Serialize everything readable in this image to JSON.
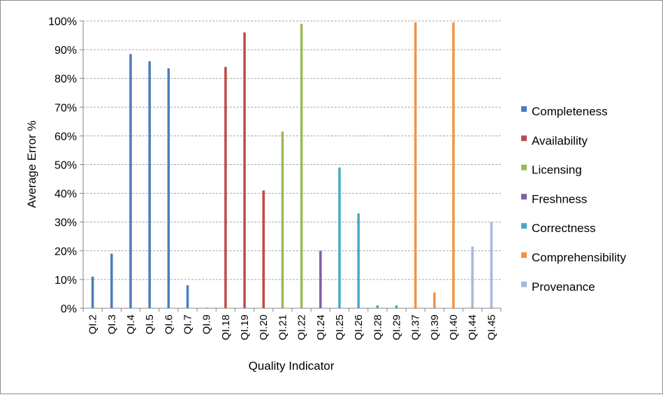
{
  "chart_data": {
    "type": "bar",
    "title": "",
    "xlabel": "Quality Indicator",
    "ylabel": "Average Error %",
    "ylim": [
      0,
      100
    ],
    "yticks": [
      "0%",
      "10%",
      "20%",
      "30%",
      "40%",
      "50%",
      "60%",
      "70%",
      "80%",
      "90%",
      "100%"
    ],
    "grid": true,
    "legend_position": "right",
    "categories": [
      "QI.2",
      "QI.3",
      "QI.4",
      "QI.5",
      "QI.6",
      "QI.7",
      "QI.9",
      "QI.18",
      "QI.19",
      "QI.20",
      "QI.21",
      "QI.22",
      "QI.24",
      "QI.25",
      "QI.26",
      "QI.28",
      "QI.29",
      "QI.37",
      "QI.39",
      "QI.40",
      "QI.44",
      "QI.45"
    ],
    "series": [
      {
        "name": "Completeness",
        "color": "#4a7ebb",
        "values": [
          11,
          19,
          88.5,
          86,
          83.5,
          8,
          0.2,
          null,
          null,
          null,
          null,
          null,
          null,
          null,
          null,
          null,
          null,
          null,
          null,
          null,
          null,
          null
        ]
      },
      {
        "name": "Availability",
        "color": "#be4b48",
        "values": [
          null,
          null,
          null,
          null,
          null,
          null,
          null,
          84,
          96,
          41,
          null,
          null,
          null,
          null,
          null,
          null,
          null,
          null,
          null,
          null,
          null,
          null
        ]
      },
      {
        "name": "Licensing",
        "color": "#98b954",
        "values": [
          null,
          null,
          null,
          null,
          null,
          null,
          null,
          null,
          null,
          null,
          61.5,
          99,
          null,
          null,
          null,
          null,
          null,
          null,
          null,
          null,
          null,
          null
        ]
      },
      {
        "name": "Freshness",
        "color": "#7d60a0",
        "values": [
          null,
          null,
          null,
          null,
          null,
          null,
          null,
          null,
          null,
          null,
          null,
          null,
          20,
          null,
          null,
          null,
          null,
          null,
          null,
          null,
          null,
          null
        ]
      },
      {
        "name": "Correctness",
        "color": "#46aac5",
        "values": [
          null,
          null,
          null,
          null,
          null,
          null,
          null,
          null,
          null,
          null,
          null,
          null,
          null,
          49,
          33,
          1,
          1,
          null,
          null,
          null,
          null,
          null
        ]
      },
      {
        "name": "Comprehensibility",
        "color": "#f69240",
        "values": [
          null,
          null,
          null,
          null,
          null,
          null,
          null,
          null,
          null,
          null,
          null,
          null,
          null,
          null,
          null,
          null,
          null,
          99.5,
          5.5,
          99.5,
          null,
          null
        ]
      },
      {
        "name": "Provenance",
        "color": "#a5b9dc",
        "values": [
          null,
          null,
          null,
          null,
          null,
          null,
          null,
          null,
          null,
          null,
          null,
          null,
          null,
          null,
          null,
          null,
          null,
          null,
          null,
          null,
          21.5,
          30
        ]
      }
    ]
  }
}
